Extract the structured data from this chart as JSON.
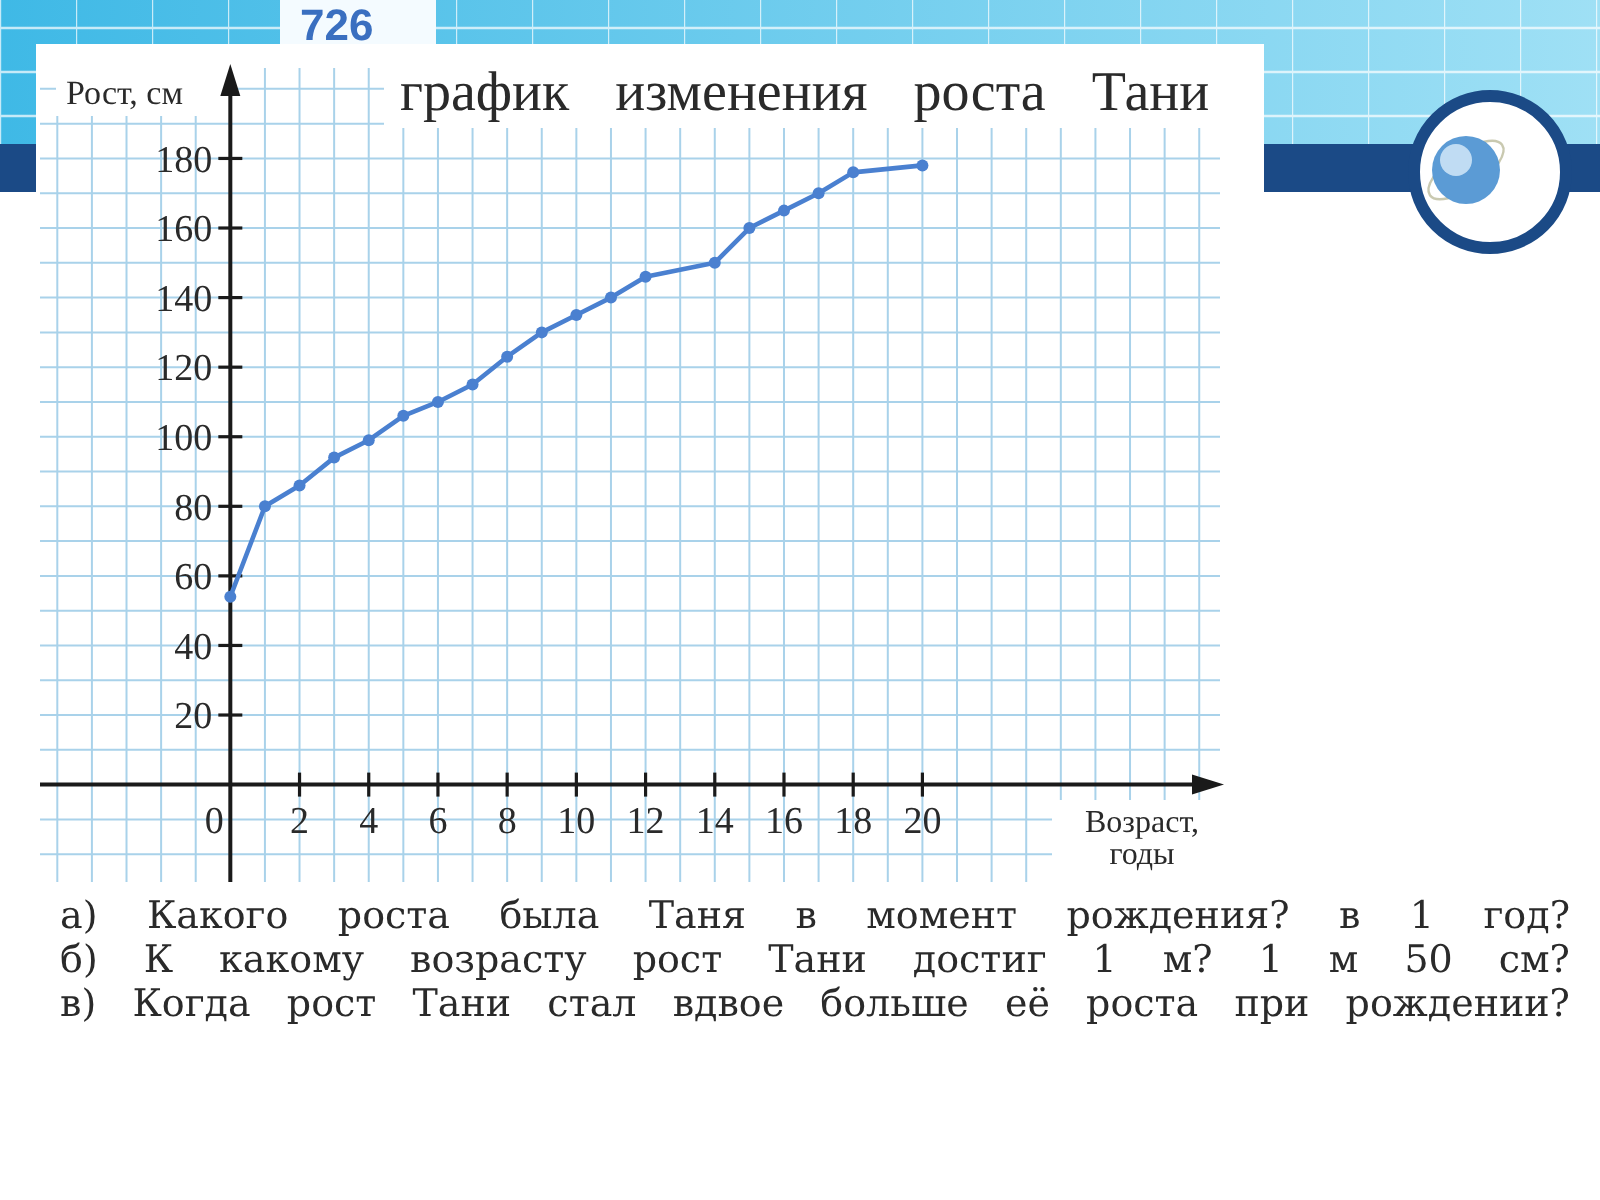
{
  "chart_data": {
    "type": "line",
    "title": "график изменения роста Тани",
    "xlabel": "Возраст, годы",
    "ylabel": "Рост, см",
    "x": [
      0,
      1,
      2,
      3,
      4,
      5,
      6,
      7,
      8,
      9,
      10,
      11,
      12,
      14,
      15,
      16,
      17,
      18,
      20
    ],
    "series": [
      {
        "color": "#4a80d0",
        "values": [
          54,
          80,
          86,
          94,
          99,
          106,
          110,
          115,
          123,
          130,
          135,
          140,
          146,
          150,
          160,
          165,
          170,
          176,
          178
        ]
      }
    ],
    "xlim": [
      -5.5,
      28.6
    ],
    "ylim": [
      -28,
      206
    ],
    "xticks": [
      0,
      2,
      4,
      6,
      8,
      10,
      12,
      14,
      16,
      18,
      20
    ],
    "yticks": [
      20,
      40,
      60,
      80,
      100,
      120,
      140,
      160,
      180
    ],
    "grid": true,
    "marker": "circle",
    "annotations": [
      "726",
      "а) Какого роста была Таня в момент рождения? в 1 год?",
      "б) К какому возрасту рост Тани достиг 1 м? 1 м 50 см?",
      "в) Когда рост Тани стал вдвое больше её роста при рождении?"
    ]
  }
}
